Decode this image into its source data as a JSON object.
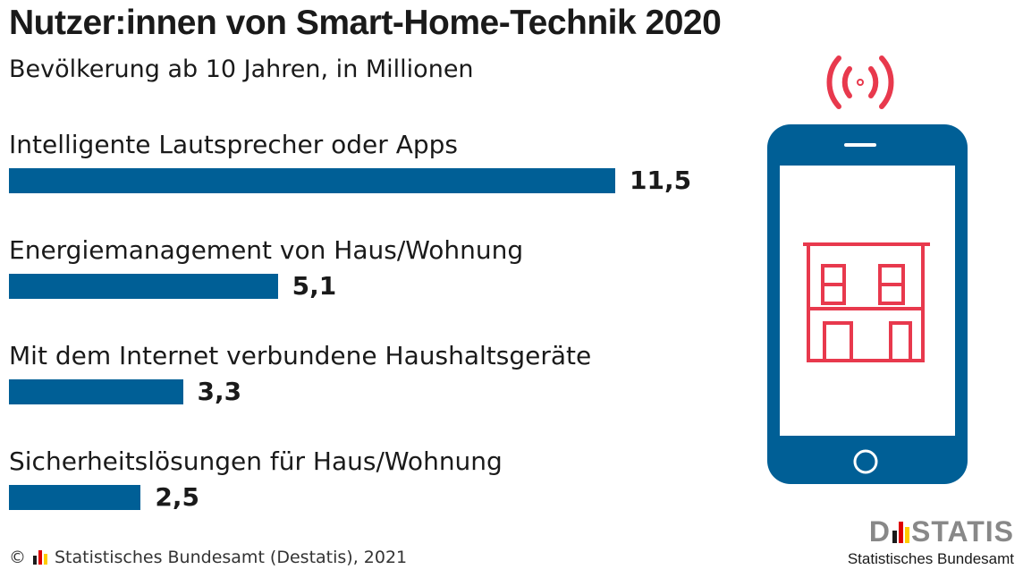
{
  "chart_data": {
    "type": "bar",
    "orientation": "horizontal",
    "title": "Nutzer:innen von Smart-Home-Technik 2020",
    "subtitle": "Bevölkerung ab 10 Jahren, in Millionen",
    "categories": [
      "Intelligente Lautsprecher oder Apps",
      "Energiemanagement von Haus/Wohnung",
      "Mit dem Internet verbundene Haushaltsgeräte",
      "Sicherheitslösungen für Haus/Wohnung"
    ],
    "values": [
      11.5,
      5.1,
      3.3,
      2.5
    ],
    "value_labels": [
      "11,5",
      "5,1",
      "3,3",
      "2,5"
    ],
    "bar_color": "#005f96",
    "grid": false,
    "legend": "none"
  },
  "illustration": {
    "phone_color": "#005f96",
    "house_color": "#e8394d",
    "signal_color": "#e8394d",
    "icons": [
      "smartphone-icon",
      "house-icon",
      "signal-icon"
    ]
  },
  "footer": {
    "copyright": "©",
    "source": "Statistisches Bundesamt (Destatis), 2021"
  },
  "logo": {
    "letter_d": "D",
    "rest": "STATIS",
    "subtitle": "Statistisches Bundesamt",
    "flag_colors": [
      "#1a1a1a",
      "#dd0000",
      "#ffcc00"
    ]
  }
}
